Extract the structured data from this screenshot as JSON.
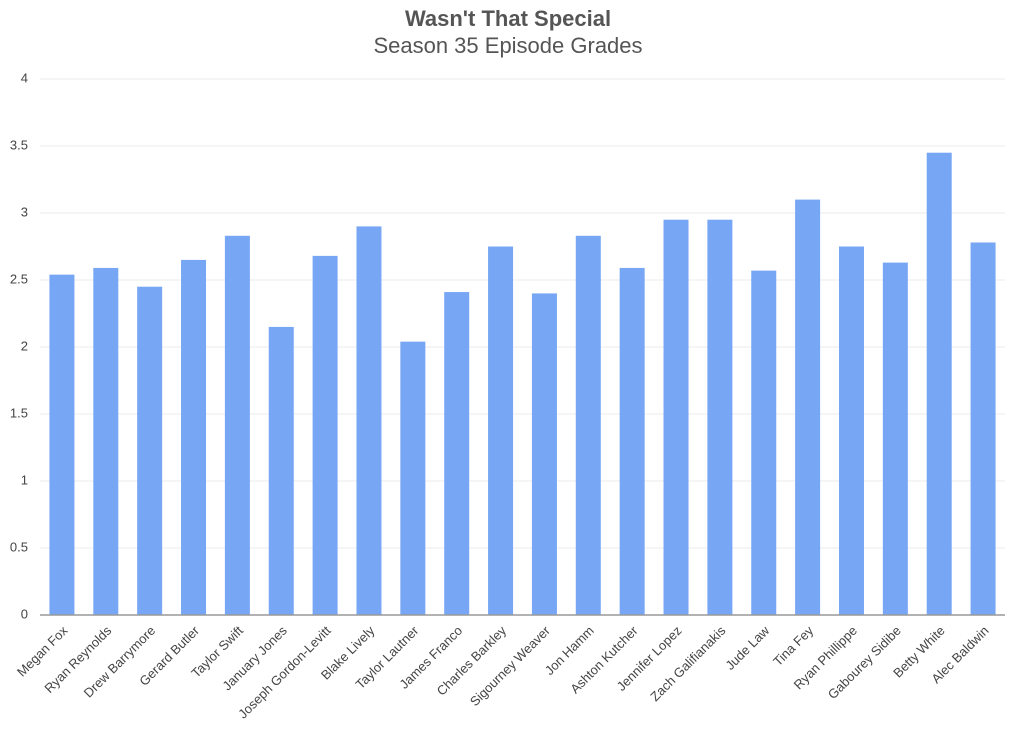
{
  "chart_data": {
    "type": "bar",
    "title": "Wasn't That Special",
    "subtitle": "Season 35 Episode Grades",
    "categories": [
      "Megan Fox",
      "Ryan Reynolds",
      "Drew Barrymore",
      "Gerard Butler",
      "Taylor Swift",
      "January Jones",
      "Joseph Gordon-Levitt",
      "Blake Lively",
      "Taylor Lautner",
      "James Franco",
      "Charles Barkley",
      "Sigourney Weaver",
      "Jon Hamm",
      "Ashton Kutcher",
      "Jennifer Lopez",
      "Zach Galifianakis",
      "Jude Law",
      "Tina Fey",
      "Ryan Phillippe",
      "Gabourey Sidibe",
      "Betty White",
      "Alec Baldwin"
    ],
    "values": [
      2.54,
      2.59,
      2.45,
      2.65,
      2.83,
      2.15,
      2.68,
      2.9,
      2.04,
      2.41,
      2.75,
      2.4,
      2.83,
      2.59,
      2.95,
      2.95,
      2.57,
      3.1,
      2.75,
      2.63,
      3.45,
      2.78
    ],
    "color": "#77a6f5",
    "ylim": [
      0,
      4
    ],
    "yticks": [
      0,
      0.5,
      1,
      1.5,
      2,
      2.5,
      3,
      3.5,
      4
    ],
    "grid": true
  }
}
